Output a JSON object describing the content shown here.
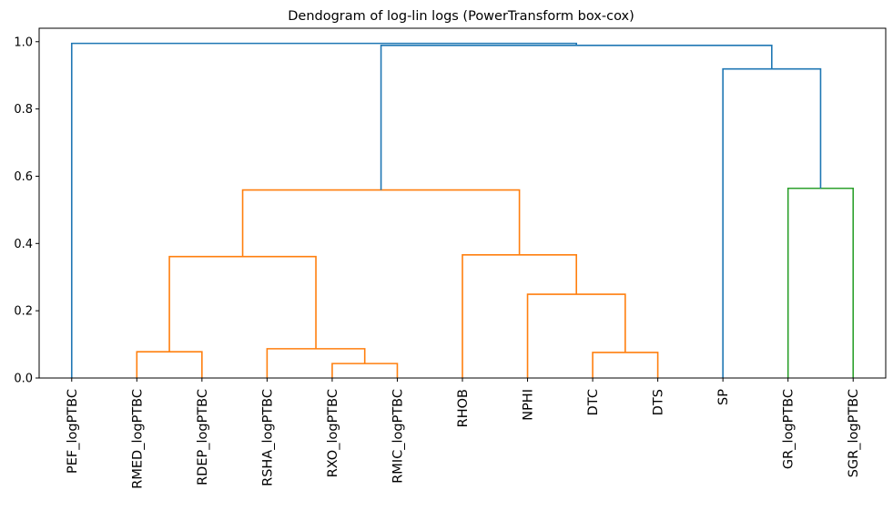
{
  "chart_data": {
    "type": "dendrogram",
    "title": "Dendogram of log-lin logs (PowerTransform box-cox)",
    "xlabel": "",
    "ylabel": "",
    "ylim": [
      0,
      1.04
    ],
    "yticks": [
      0.0,
      0.2,
      0.4,
      0.6,
      0.8,
      1.0
    ],
    "ytick_labels": [
      "0.0",
      "0.2",
      "0.4",
      "0.6",
      "0.8",
      "1.0"
    ],
    "leaves": [
      "PEF_logPTBC",
      "RMED_logPTBC",
      "RDEP_logPTBC",
      "RSHA_logPTBC",
      "RXO_logPTBC",
      "RMIC_logPTBC",
      "RHOB",
      "NPHI",
      "DTC",
      "DTS",
      "SP",
      "GR_logPTBC",
      "SGR_logPTBC"
    ],
    "grid": false,
    "colors": {
      "above_threshold": "#1f77b4",
      "cluster_1": "#ff7f0e",
      "cluster_2": "#2ca02c"
    },
    "links": [
      {
        "left": 1,
        "right": 2,
        "height": 0.078,
        "color": "#ff7f0e"
      },
      {
        "left": 4,
        "right": 5,
        "height": 0.043,
        "color": "#ff7f0e"
      },
      {
        "left": 3,
        "right": 4.5,
        "height": 0.087,
        "color": "#ff7f0e"
      },
      {
        "left": 1.5,
        "right": 3.75,
        "height": 0.361,
        "color": "#ff7f0e"
      },
      {
        "left": 8,
        "right": 9,
        "height": 0.076,
        "color": "#ff7f0e"
      },
      {
        "left": 7,
        "right": 8.5,
        "height": 0.249,
        "color": "#ff7f0e"
      },
      {
        "left": 6,
        "right": 7.75,
        "height": 0.366,
        "color": "#ff7f0e"
      },
      {
        "left": 2.625,
        "right": 6.875,
        "height": 0.559,
        "color": "#ff7f0e"
      },
      {
        "left": 11,
        "right": 12,
        "height": 0.564,
        "color": "#2ca02c"
      },
      {
        "left": 10,
        "right": 11.5,
        "height": 0.919,
        "color": "#1f77b4"
      },
      {
        "left": 4.75,
        "right": 10.75,
        "height": 0.989,
        "color": "#1f77b4"
      },
      {
        "left": 0,
        "right": 7.75,
        "height": 0.995,
        "color": "#1f77b4"
      }
    ]
  }
}
